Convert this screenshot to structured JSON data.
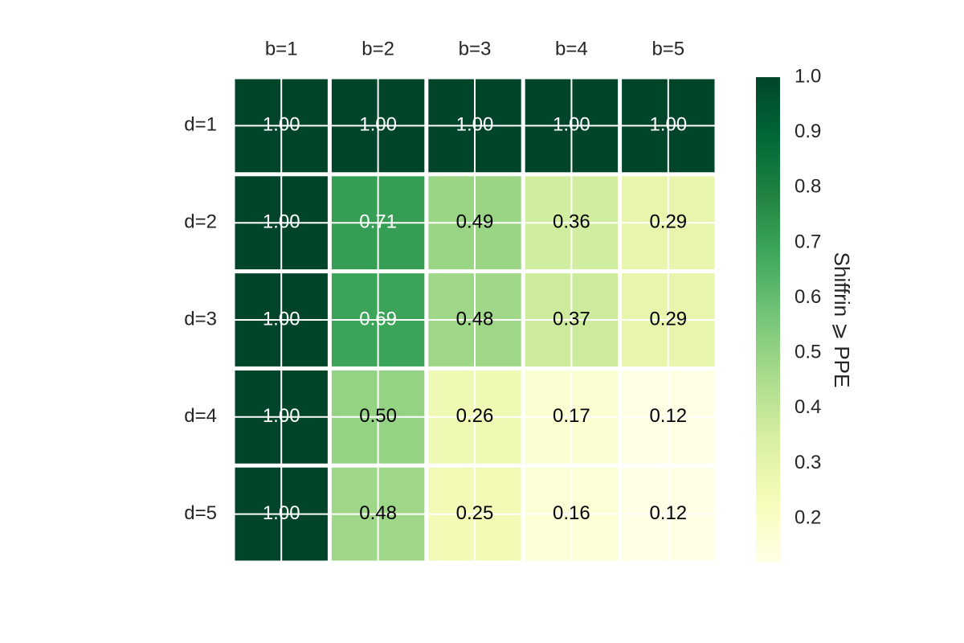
{
  "chart_data": {
    "type": "heatmap",
    "title": "",
    "x_categories": [
      "b=1",
      "b=2",
      "b=3",
      "b=4",
      "b=5"
    ],
    "y_categories": [
      "d=1",
      "d=2",
      "d=3",
      "d=4",
      "d=5"
    ],
    "values": [
      [
        1.0,
        1.0,
        1.0,
        1.0,
        1.0
      ],
      [
        1.0,
        0.71,
        0.49,
        0.36,
        0.29
      ],
      [
        1.0,
        0.69,
        0.48,
        0.37,
        0.29
      ],
      [
        1.0,
        0.5,
        0.26,
        0.17,
        0.12
      ],
      [
        1.0,
        0.48,
        0.25,
        0.16,
        0.12
      ]
    ],
    "labels": [
      [
        "1.00",
        "1.00",
        "1.00",
        "1.00",
        "1.00"
      ],
      [
        "1.00",
        "0.71",
        "0.49",
        "0.36",
        "0.29"
      ],
      [
        "1.00",
        "0.69",
        "0.48",
        "0.37",
        "0.29"
      ],
      [
        "1.00",
        "0.50",
        "0.26",
        "0.17",
        "0.12"
      ],
      [
        "1.00",
        "0.48",
        "0.25",
        "0.16",
        "0.12"
      ]
    ],
    "x_axis_position": "top",
    "colorbar": {
      "label": "Shiffrin ⩾ PPE",
      "vmin": 0.12,
      "vmax": 1.0,
      "ticks": [
        "1.0",
        "0.9",
        "0.8",
        "0.7",
        "0.6",
        "0.5",
        "0.4",
        "0.3",
        "0.2"
      ],
      "colormap": "YlGn",
      "position": "right"
    },
    "grid": true
  }
}
